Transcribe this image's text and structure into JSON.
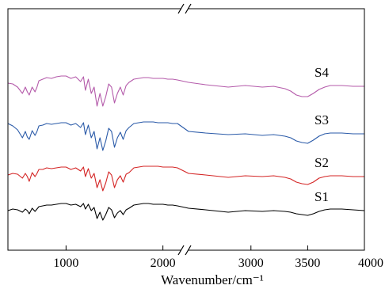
{
  "chart_data": {
    "type": "line",
    "title": "",
    "xlabel": "Wavenumber/cm⁻¹",
    "ylabel": "",
    "axis_break": {
      "from": 2150,
      "to": 2450
    },
    "xlim": [
      400,
      4000
    ],
    "xticks": [
      1000,
      2000,
      3000,
      3500,
      4000
    ],
    "grid": false,
    "legend": "inline labels at right",
    "series": [
      {
        "name": "S1",
        "color": "#000000",
        "offset": 0,
        "x": [
          400,
          450,
          500,
          550,
          580,
          600,
          620,
          650,
          680,
          700,
          720,
          760,
          800,
          850,
          900,
          950,
          1000,
          1050,
          1100,
          1150,
          1180,
          1200,
          1230,
          1260,
          1290,
          1320,
          1350,
          1380,
          1410,
          1440,
          1470,
          1500,
          1530,
          1560,
          1590,
          1620,
          1650,
          1700,
          1750,
          1800,
          1850,
          1900,
          1950,
          2000,
          2050,
          2100,
          2150,
          2450,
          2600,
          2800,
          2950,
          3100,
          3200,
          3300,
          3350,
          3400,
          3450,
          3500,
          3550,
          3600,
          3650,
          3700,
          3800,
          3900,
          4000
        ],
        "y": [
          4,
          6,
          5,
          2,
          6,
          4,
          0,
          7,
          3,
          6,
          9,
          10,
          11,
          11,
          12,
          13,
          13,
          11,
          12,
          9,
          13,
          6,
          12,
          4,
          8,
          -6,
          2,
          -8,
          -1,
          8,
          5,
          -5,
          1,
          4,
          -1,
          5,
          7,
          11,
          12,
          13,
          13,
          12,
          12,
          12,
          11,
          11,
          10,
          7,
          5,
          2,
          4,
          3,
          4,
          3,
          2,
          0,
          -1,
          -2,
          0,
          3,
          5,
          6,
          6,
          5,
          4
        ]
      },
      {
        "name": "S2",
        "color": "#d42525",
        "offset": 43,
        "x": [
          400,
          450,
          500,
          550,
          580,
          600,
          620,
          650,
          680,
          700,
          720,
          760,
          800,
          850,
          900,
          950,
          1000,
          1050,
          1100,
          1150,
          1180,
          1200,
          1230,
          1260,
          1290,
          1320,
          1350,
          1380,
          1410,
          1440,
          1470,
          1500,
          1530,
          1560,
          1590,
          1620,
          1650,
          1700,
          1750,
          1800,
          1850,
          1900,
          1950,
          2000,
          2050,
          2100,
          2150,
          2450,
          2600,
          2800,
          2950,
          3100,
          3200,
          3300,
          3350,
          3400,
          3450,
          3500,
          3550,
          3600,
          3650,
          3700,
          3800,
          3900,
          4000
        ],
        "y": [
          6,
          8,
          7,
          2,
          8,
          4,
          -2,
          9,
          4,
          8,
          13,
          13,
          15,
          14,
          15,
          16,
          16,
          13,
          15,
          11,
          16,
          4,
          14,
          2,
          8,
          -10,
          0,
          -14,
          -4,
          10,
          6,
          -10,
          0,
          5,
          -3,
          7,
          9,
          15,
          16,
          17,
          17,
          17,
          17,
          16,
          16,
          16,
          15,
          8,
          6,
          3,
          5,
          4,
          5,
          3,
          1,
          -3,
          -5,
          -6,
          -3,
          2,
          4,
          5,
          5,
          4,
          4
        ]
      },
      {
        "name": "S3",
        "color": "#2a5aa8",
        "offset": 100,
        "x": [
          400,
          450,
          500,
          550,
          580,
          600,
          620,
          650,
          680,
          700,
          720,
          760,
          800,
          850,
          900,
          950,
          1000,
          1050,
          1100,
          1150,
          1180,
          1200,
          1230,
          1260,
          1290,
          1320,
          1350,
          1380,
          1410,
          1440,
          1470,
          1500,
          1530,
          1560,
          1590,
          1620,
          1650,
          1700,
          1750,
          1800,
          1850,
          1900,
          1950,
          2000,
          2050,
          2100,
          2150,
          2450,
          2600,
          2800,
          2950,
          3100,
          3200,
          3300,
          3350,
          3400,
          3450,
          3500,
          3550,
          3600,
          3650,
          3700,
          3800,
          3900,
          4000
        ],
        "y": [
          14,
          11,
          6,
          -4,
          4,
          -3,
          -6,
          5,
          -1,
          4,
          11,
          12,
          14,
          13,
          14,
          15,
          15,
          12,
          14,
          9,
          15,
          0,
          12,
          -4,
          4,
          -18,
          -4,
          -20,
          -8,
          8,
          4,
          -16,
          -4,
          3,
          -6,
          5,
          9,
          14,
          15,
          16,
          16,
          16,
          15,
          15,
          15,
          14,
          14,
          4,
          2,
          0,
          1,
          -1,
          0,
          -2,
          -4,
          -8,
          -10,
          -11,
          -7,
          -2,
          1,
          2,
          2,
          1,
          1
        ]
      },
      {
        "name": "S4",
        "color": "#b45aaa",
        "offset": 160,
        "x": [
          400,
          450,
          500,
          550,
          580,
          600,
          620,
          650,
          680,
          700,
          720,
          760,
          800,
          850,
          900,
          950,
          1000,
          1050,
          1100,
          1150,
          1180,
          1200,
          1230,
          1260,
          1290,
          1320,
          1350,
          1380,
          1410,
          1440,
          1470,
          1500,
          1530,
          1560,
          1590,
          1620,
          1650,
          1700,
          1750,
          1800,
          1850,
          1900,
          1950,
          2000,
          2050,
          2100,
          2150,
          2450,
          2600,
          2800,
          2950,
          3100,
          3200,
          3300,
          3350,
          3400,
          3450,
          3500,
          3550,
          3600,
          3650,
          3700,
          3800,
          3900,
          4000
        ],
        "y": [
          5,
          4,
          0,
          -8,
          0,
          -6,
          -10,
          0,
          -6,
          0,
          8,
          10,
          12,
          11,
          13,
          14,
          14,
          11,
          13,
          7,
          13,
          -4,
          10,
          -8,
          0,
          -24,
          -8,
          -24,
          -12,
          4,
          0,
          -20,
          -8,
          0,
          -10,
          2,
          6,
          10,
          11,
          12,
          12,
          11,
          11,
          11,
          10,
          10,
          9,
          6,
          3,
          0,
          2,
          0,
          1,
          -2,
          -5,
          -10,
          -12,
          -12,
          -8,
          -3,
          0,
          2,
          2,
          1,
          1
        ]
      }
    ],
    "labels": [
      {
        "text": "S4",
        "series": "S4"
      },
      {
        "text": "S3",
        "series": "S3"
      },
      {
        "text": "S2",
        "series": "S2"
      },
      {
        "text": "S1",
        "series": "S1"
      }
    ]
  }
}
